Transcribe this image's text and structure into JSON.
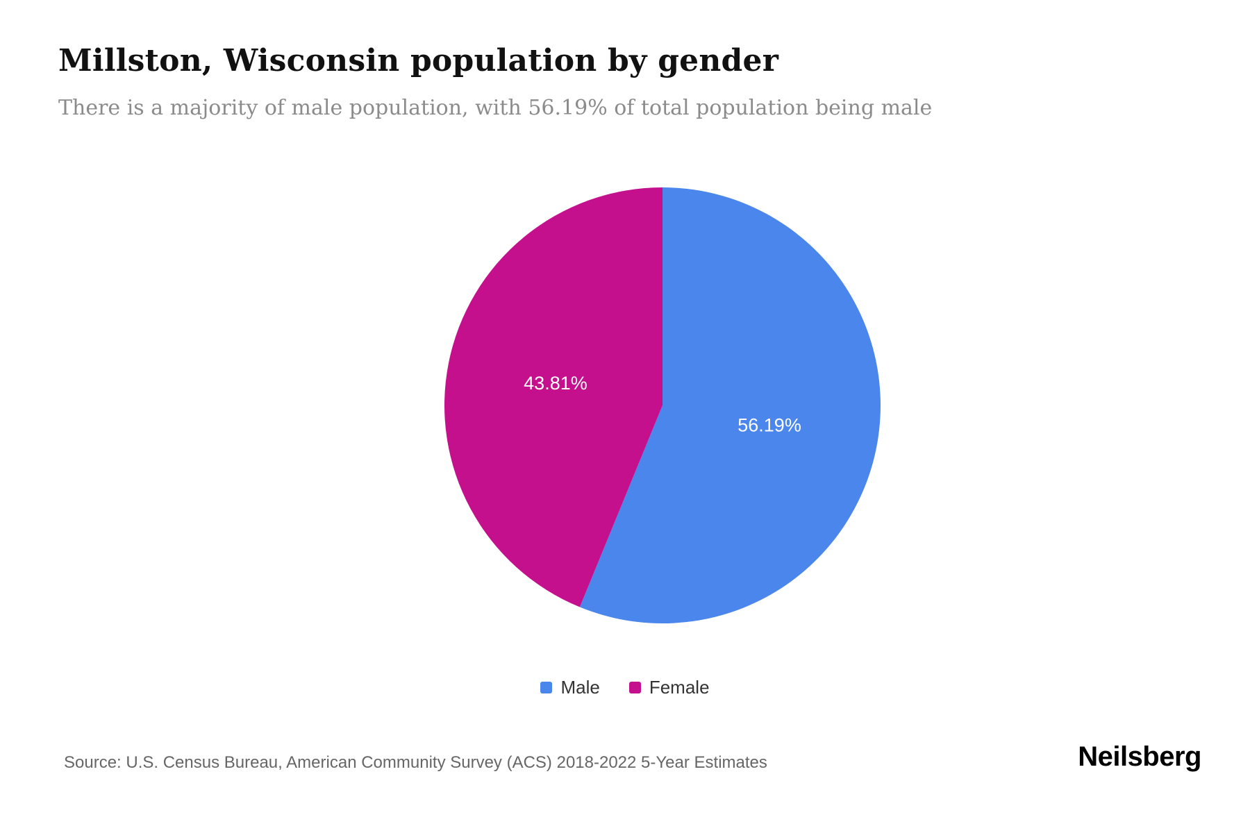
{
  "page": {
    "title": "Millston, Wisconsin population by gender",
    "subtitle": "There is a majority of male population, with 56.19% of total population being male",
    "source": "Source: U.S. Census Bureau, American Community Survey (ACS) 2018-2022 5-Year Estimates",
    "brand": "Neilsberg"
  },
  "chart_data": {
    "type": "pie",
    "title": "Millston, Wisconsin population by gender",
    "subtitle": "There is a majority of male population, with 56.19% of total population being male",
    "labels": [
      "Male",
      "Female"
    ],
    "values": [
      56.19,
      43.81
    ],
    "display_values": [
      "56.19%",
      "43.81%"
    ],
    "colors": [
      "#4A86EC",
      "#C4108C"
    ],
    "slice_label_color": "#ffffff",
    "start_angle_deg": -90,
    "direction": "clockwise",
    "legend_position": "bottom",
    "source": "Source: U.S. Census Bureau, American Community Survey (ACS) 2018-2022 5-Year Estimates"
  }
}
